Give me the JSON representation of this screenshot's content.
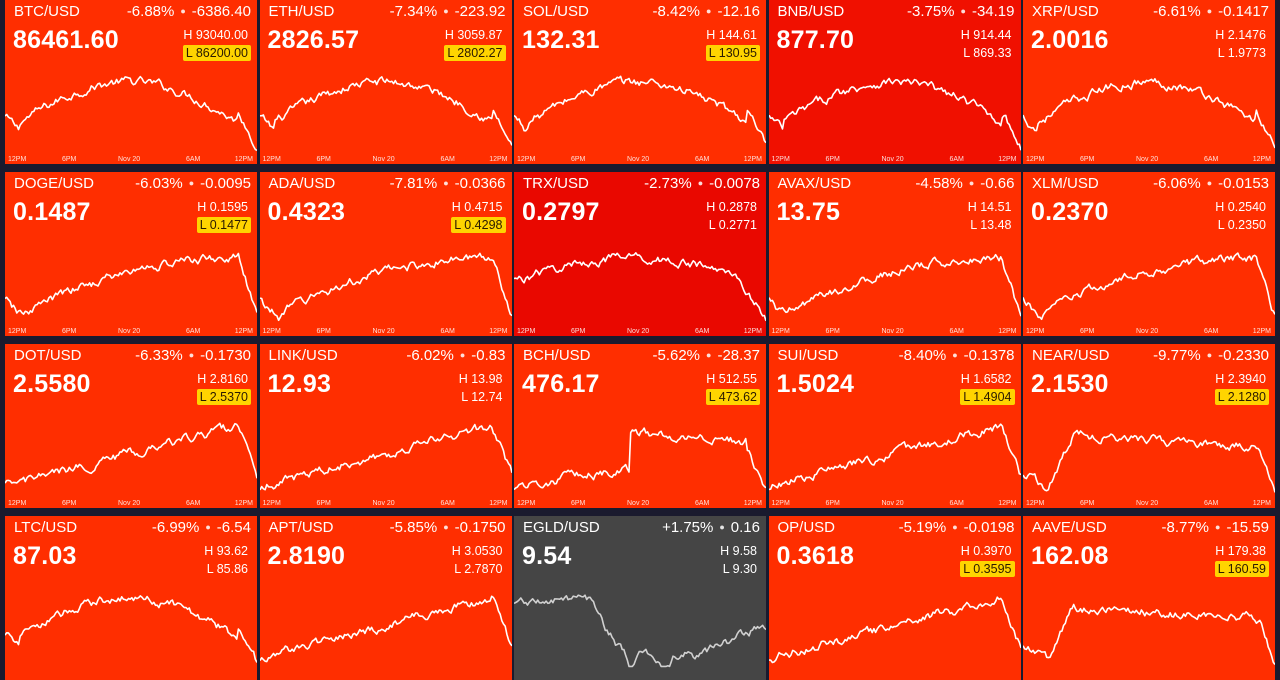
{
  "colors": {
    "down": "#ff2e00",
    "down_strong": "#f01000",
    "down_medium": "#e90800",
    "up_neutral": "#454545",
    "marker": "#ffd400"
  },
  "axis_labels": [
    "12PM",
    "6PM",
    "Nov 20",
    "6AM",
    "12PM"
  ],
  "tiles": [
    {
      "symbol": "BTC/USD",
      "pct": "-6.88%",
      "delta": "-6386.40",
      "price": "86461.60",
      "high": "H 93040.00",
      "low": "L 86200.00",
      "low_marked": true,
      "tone": "down",
      "profile": "bell",
      "spark": [],
      "axis": true
    },
    {
      "symbol": "ETH/USD",
      "pct": "-7.34%",
      "delta": "-223.92",
      "price": "2826.57",
      "high": "H 3059.87",
      "low": "L 2802.27",
      "low_marked": true,
      "tone": "down",
      "profile": "bell",
      "spark": [],
      "axis": true
    },
    {
      "symbol": "SOL/USD",
      "pct": "-8.42%",
      "delta": "-12.16",
      "price": "132.31",
      "high": "H 144.61",
      "low": "L 130.95",
      "low_marked": true,
      "tone": "down",
      "profile": "bell",
      "spark": [],
      "axis": true
    },
    {
      "symbol": "BNB/USD",
      "pct": "-3.75%",
      "delta": "-34.19",
      "price": "877.70",
      "high": "H 914.44",
      "low": "L 869.33",
      "low_marked": false,
      "tone": "down_strong",
      "profile": "bell",
      "spark": [],
      "axis": true
    },
    {
      "symbol": "XRP/USD",
      "pct": "-6.61%",
      "delta": "-0.1417",
      "price": "2.0016",
      "high": "H 2.1476",
      "low": "L 1.9773",
      "low_marked": false,
      "tone": "down",
      "profile": "bell",
      "spark": [],
      "axis": true
    },
    {
      "symbol": "DOGE/USD",
      "pct": "-6.03%",
      "delta": "-0.0095",
      "price": "0.1487",
      "high": "H 0.1595",
      "low": "L 0.1477",
      "low_marked": true,
      "tone": "down",
      "profile": "rise",
      "spark": [],
      "axis": true
    },
    {
      "symbol": "ADA/USD",
      "pct": "-7.81%",
      "delta": "-0.0366",
      "price": "0.4323",
      "high": "H 0.4715",
      "low": "L 0.4298",
      "low_marked": true,
      "tone": "down",
      "profile": "rise",
      "spark": [],
      "axis": true
    },
    {
      "symbol": "TRX/USD",
      "pct": "-2.73%",
      "delta": "-0.0078",
      "price": "0.2797",
      "high": "H 0.2878",
      "low": "L 0.2771",
      "low_marked": false,
      "tone": "down_medium",
      "profile": "dome",
      "spark": [],
      "axis": true
    },
    {
      "symbol": "AVAX/USD",
      "pct": "-4.58%",
      "delta": "-0.66",
      "price": "13.75",
      "high": "H 14.51",
      "low": "L 13.48",
      "low_marked": false,
      "tone": "down",
      "profile": "rise",
      "spark": [],
      "axis": true
    },
    {
      "symbol": "XLM/USD",
      "pct": "-6.06%",
      "delta": "-0.0153",
      "price": "0.2370",
      "high": "H 0.2540",
      "low": "L 0.2350",
      "low_marked": false,
      "tone": "down",
      "profile": "rise",
      "spark": [],
      "axis": true
    },
    {
      "symbol": "DOT/USD",
      "pct": "-6.33%",
      "delta": "-0.1730",
      "price": "2.5580",
      "high": "H 2.8160",
      "low": "L 2.5370",
      "low_marked": true,
      "tone": "down",
      "profile": "climb",
      "spark": [],
      "axis": true
    },
    {
      "symbol": "LINK/USD",
      "pct": "-6.02%",
      "delta": "-0.83",
      "price": "12.93",
      "high": "H 13.98",
      "low": "L 12.74",
      "low_marked": false,
      "tone": "down",
      "profile": "climb",
      "spark": [],
      "axis": true
    },
    {
      "symbol": "BCH/USD",
      "pct": "-5.62%",
      "delta": "-28.37",
      "price": "476.17",
      "high": "H 512.55",
      "low": "L 473.62",
      "low_marked": true,
      "tone": "down",
      "profile": "jump",
      "spark": [],
      "axis": true
    },
    {
      "symbol": "SUI/USD",
      "pct": "-8.40%",
      "delta": "-0.1378",
      "price": "1.5024",
      "high": "H 1.6582",
      "low": "L 1.4904",
      "low_marked": true,
      "tone": "down",
      "profile": "climb",
      "spark": [],
      "axis": true
    },
    {
      "symbol": "NEAR/USD",
      "pct": "-9.77%",
      "delta": "-0.2330",
      "price": "2.1530",
      "high": "H 2.3940",
      "low": "L 2.1280",
      "low_marked": true,
      "tone": "down",
      "profile": "early",
      "spark": [],
      "axis": true
    },
    {
      "symbol": "LTC/USD",
      "pct": "-6.99%",
      "delta": "-6.54",
      "price": "87.03",
      "high": "H 93.62",
      "low": "L 85.86",
      "low_marked": false,
      "tone": "down",
      "profile": "bell",
      "spark": [],
      "axis": false
    },
    {
      "symbol": "APT/USD",
      "pct": "-5.85%",
      "delta": "-0.1750",
      "price": "2.8190",
      "high": "H 3.0530",
      "low": "L 2.7870",
      "low_marked": false,
      "tone": "down",
      "profile": "climb",
      "spark": [],
      "axis": false
    },
    {
      "symbol": "EGLD/USD",
      "pct": "+1.75%",
      "delta": "0.16",
      "price": "9.54",
      "high": "H 9.58",
      "low": "L 9.30",
      "low_marked": false,
      "tone": "up_neutral",
      "profile": "egld",
      "spark": [],
      "axis": false
    },
    {
      "symbol": "OP/USD",
      "pct": "-5.19%",
      "delta": "-0.0198",
      "price": "0.3618",
      "high": "H 0.3970",
      "low": "L 0.3595",
      "low_marked": true,
      "tone": "down",
      "profile": "climb",
      "spark": [],
      "axis": false
    },
    {
      "symbol": "AAVE/USD",
      "pct": "-8.77%",
      "delta": "-15.59",
      "price": "162.08",
      "high": "H 179.38",
      "low": "L 160.59",
      "low_marked": true,
      "tone": "down",
      "profile": "early",
      "spark": [],
      "axis": false
    }
  ]
}
